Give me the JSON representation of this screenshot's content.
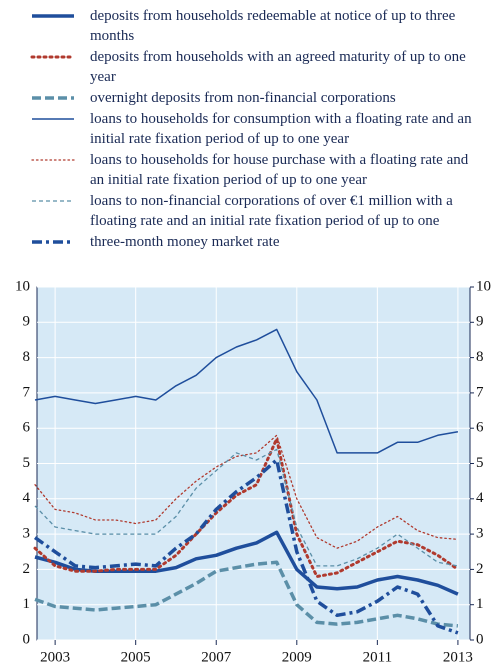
{
  "chart_data": {
    "type": "line",
    "x": [
      2002.5,
      2003,
      2003.5,
      2004,
      2004.5,
      2005,
      2005.5,
      2006,
      2006.5,
      2007,
      2007.5,
      2008,
      2008.5,
      2009,
      2009.5,
      2010,
      2010.5,
      2011,
      2011.5,
      2012,
      2012.5,
      2013
    ],
    "xlim": [
      2002.55,
      2013.3
    ],
    "xticks": [
      2003,
      2005,
      2007,
      2009,
      2011,
      2013
    ],
    "ylim": [
      0,
      10
    ],
    "yticks": [
      0,
      1,
      2,
      3,
      4,
      5,
      6,
      7,
      8,
      9,
      10
    ],
    "y2lim": [
      0,
      10
    ],
    "y2ticks": [
      0,
      1,
      2,
      3,
      4,
      5,
      6,
      7,
      8,
      9,
      10
    ],
    "grid": true,
    "series": [
      {
        "name": "deposits from households redeemable at notice of up to three months",
        "color": "#1f4e9c",
        "linestyle": "solid",
        "linewidth": 3.5,
        "values": [
          2.35,
          2.2,
          2.0,
          1.95,
          1.95,
          1.95,
          1.95,
          2.05,
          2.3,
          2.4,
          2.6,
          2.75,
          3.05,
          2.0,
          1.5,
          1.45,
          1.5,
          1.7,
          1.8,
          1.7,
          1.55,
          1.3
        ]
      },
      {
        "name": "deposits from households with an agreed maturity of up to one year",
        "color": "#b03a2e",
        "linestyle": "dotted",
        "linewidth": 3,
        "values": [
          2.6,
          2.1,
          1.95,
          1.95,
          2.0,
          2.0,
          2.0,
          2.4,
          3.0,
          3.6,
          4.1,
          4.4,
          5.7,
          3.0,
          1.8,
          1.9,
          2.2,
          2.5,
          2.8,
          2.7,
          2.4,
          2.0
        ]
      },
      {
        "name": "overnight deposits from non-financial corporations",
        "color": "#5b8fa8",
        "linestyle": "dashed",
        "linewidth": 3.5,
        "values": [
          1.15,
          0.95,
          0.9,
          0.85,
          0.9,
          0.95,
          1.0,
          1.3,
          1.6,
          1.95,
          2.05,
          2.15,
          2.2,
          1.0,
          0.5,
          0.45,
          0.5,
          0.6,
          0.7,
          0.6,
          0.45,
          0.4
        ]
      },
      {
        "name": "loans to households for consumption with a floating rate and an initial rate fixation period of up to one year",
        "color": "#1f4e9c",
        "linestyle": "solid",
        "linewidth": 1.5,
        "values": [
          6.8,
          6.9,
          6.8,
          6.7,
          6.8,
          6.9,
          6.8,
          7.2,
          7.5,
          8.0,
          8.3,
          8.5,
          8.8,
          7.6,
          6.8,
          5.3,
          5.3,
          5.3,
          5.6,
          5.6,
          5.8,
          5.9
        ]
      },
      {
        "name": "loans to households for house purchase with a floating rate and an initial rate fixation period of up to one year",
        "color": "#b03a2e",
        "linestyle": "dotted",
        "linewidth": 1.3,
        "values": [
          4.4,
          3.7,
          3.6,
          3.4,
          3.4,
          3.3,
          3.4,
          4.0,
          4.5,
          4.9,
          5.2,
          5.3,
          5.8,
          4.0,
          2.9,
          2.6,
          2.8,
          3.2,
          3.5,
          3.1,
          2.9,
          2.85
        ]
      },
      {
        "name": "loans to non-financial corporations of over €1 million with a floating rate and an initial rate fixation period of up to one",
        "color": "#5b8fa8",
        "linestyle": "dashed",
        "linewidth": 1.3,
        "values": [
          3.8,
          3.2,
          3.1,
          3.0,
          3.0,
          3.0,
          3.0,
          3.5,
          4.3,
          4.8,
          5.3,
          5.1,
          5.4,
          3.2,
          2.1,
          2.1,
          2.3,
          2.6,
          3.0,
          2.6,
          2.2,
          2.1
        ]
      },
      {
        "name": "three-month money market rate",
        "color": "#1f4e9c",
        "linestyle": "dashdot",
        "linewidth": 3.5,
        "values": [
          2.9,
          2.5,
          2.1,
          2.05,
          2.1,
          2.15,
          2.1,
          2.6,
          3.0,
          3.7,
          4.2,
          4.6,
          5.1,
          2.5,
          1.1,
          0.7,
          0.8,
          1.1,
          1.5,
          1.3,
          0.4,
          0.2
        ]
      }
    ]
  }
}
